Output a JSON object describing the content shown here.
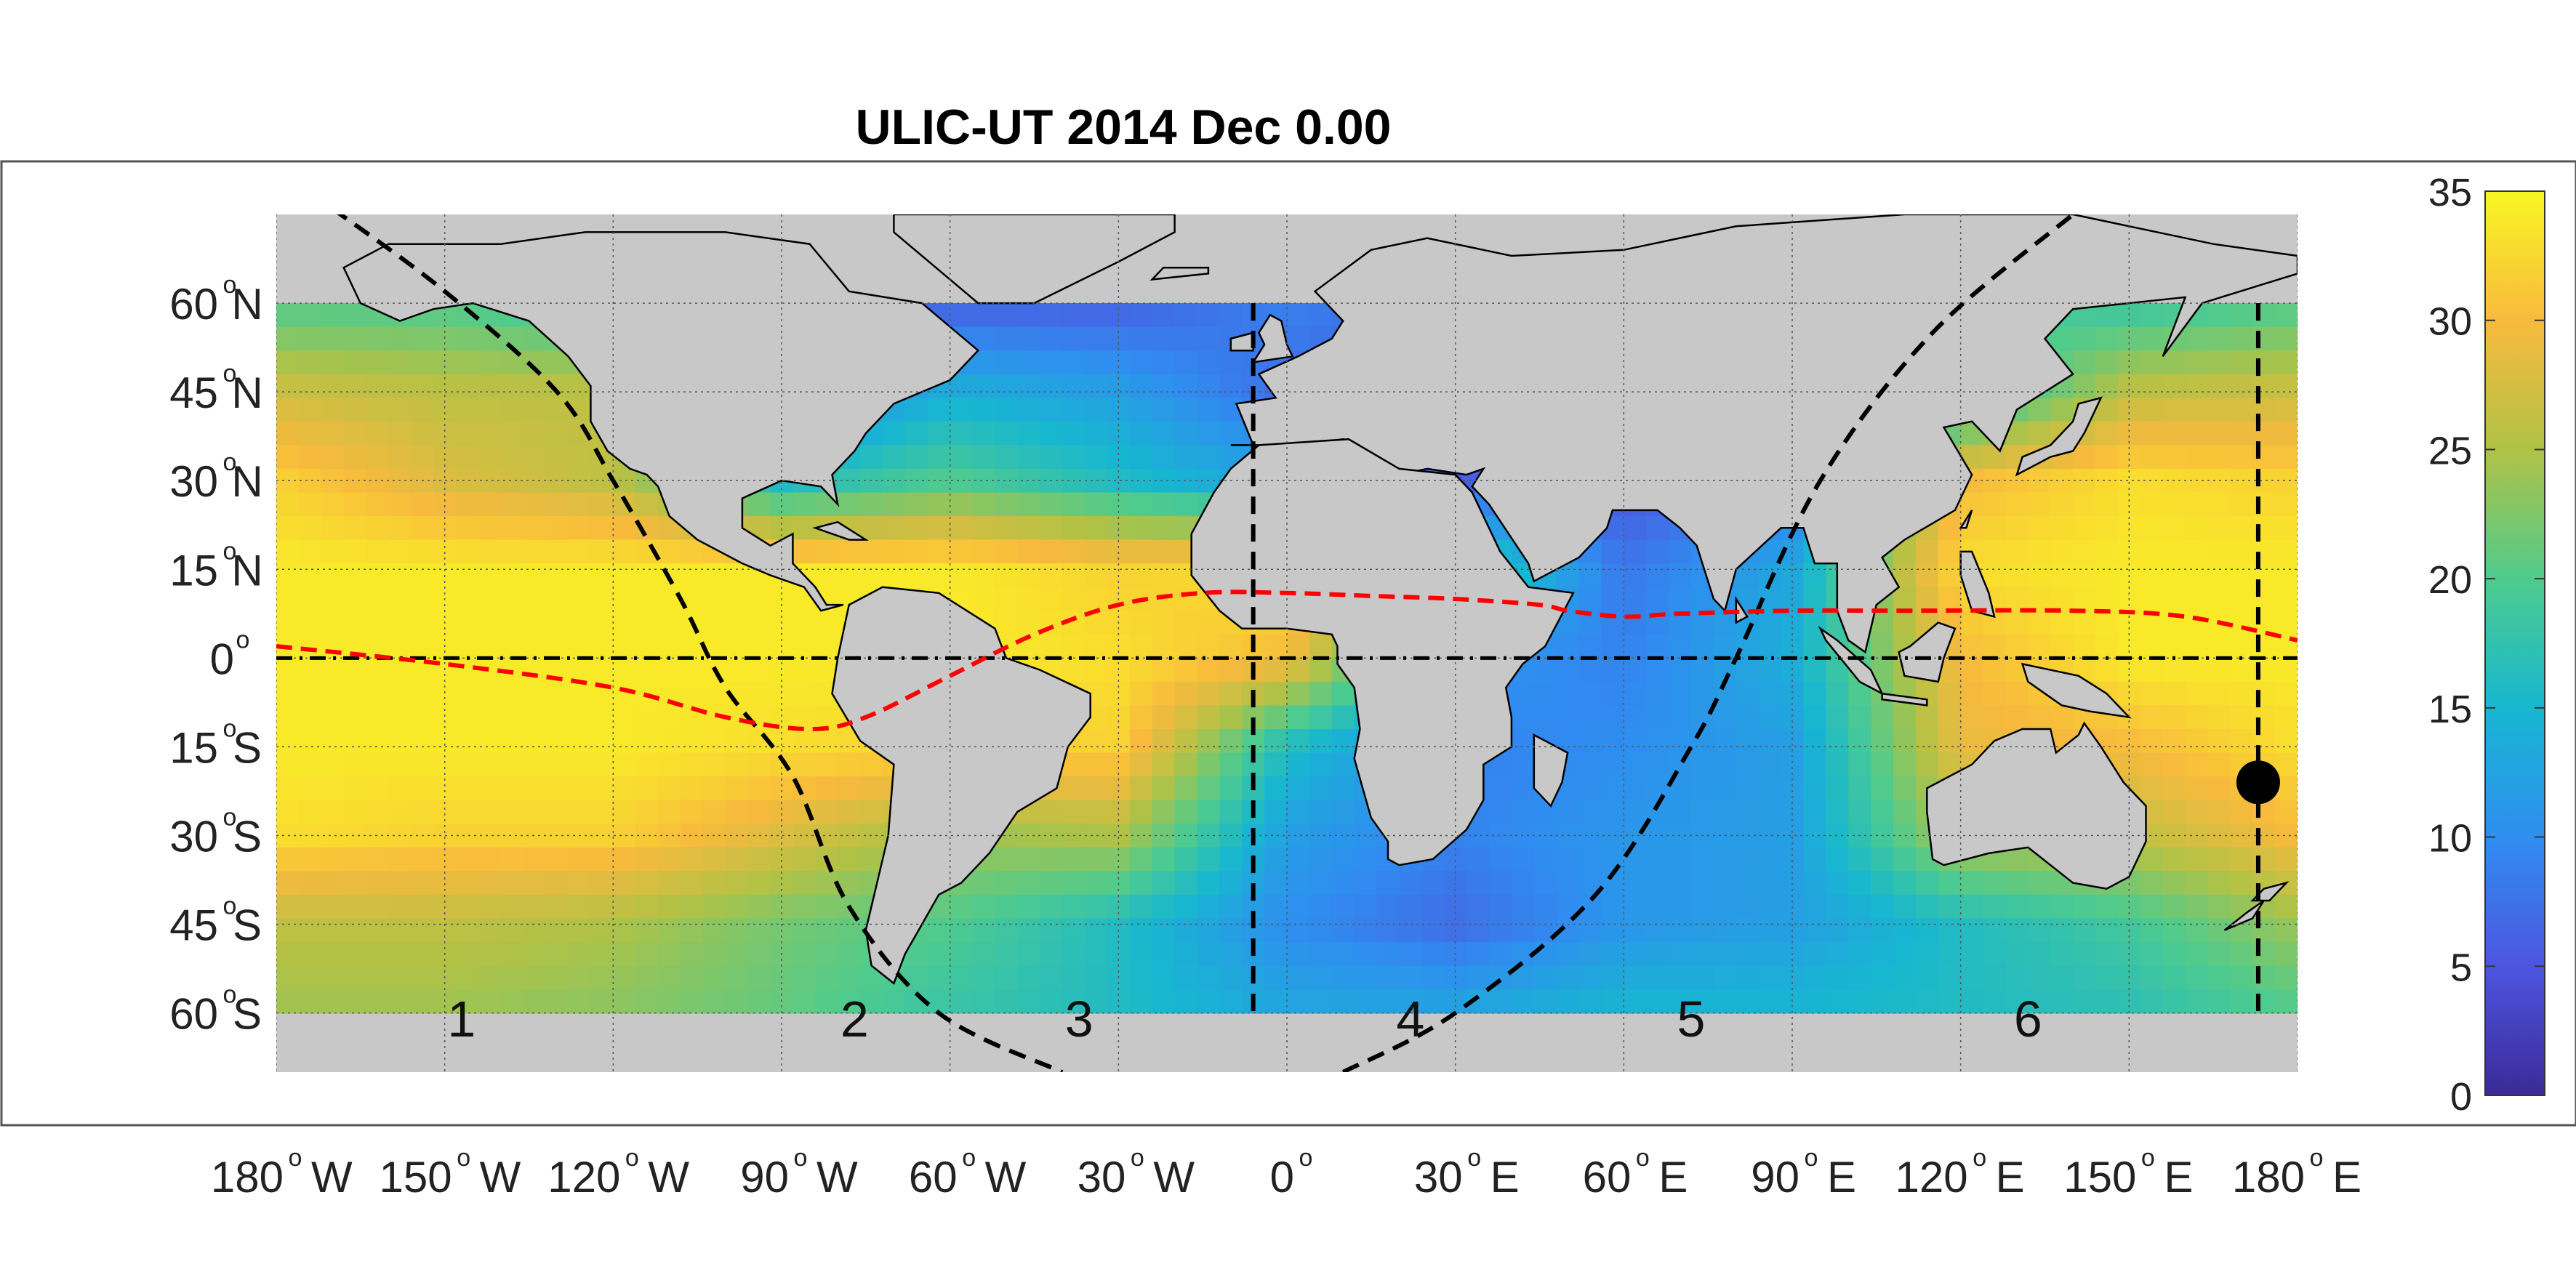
{
  "title": "ULIC-UT 2014 Dec  0.00",
  "map": {
    "projection": "equirectangular",
    "lon_range": [
      -180,
      180
    ],
    "lat_range": [
      -70,
      75
    ],
    "data_lat_range": [
      -60,
      60
    ],
    "land_color": "#c8c8c8",
    "grid": true,
    "lat_ticks": [
      {
        "value": 60,
        "num": "60",
        "hemi": "N"
      },
      {
        "value": 45,
        "num": "45",
        "hemi": "N"
      },
      {
        "value": 30,
        "num": "30",
        "hemi": "N"
      },
      {
        "value": 15,
        "num": "15",
        "hemi": "N"
      },
      {
        "value": 0,
        "num": "0",
        "hemi": ""
      },
      {
        "value": -15,
        "num": "15",
        "hemi": "S"
      },
      {
        "value": -30,
        "num": "30",
        "hemi": "S"
      },
      {
        "value": -45,
        "num": "45",
        "hemi": "S"
      },
      {
        "value": -60,
        "num": "60",
        "hemi": "S"
      }
    ],
    "lon_ticks": [
      {
        "value": -180,
        "num": "180",
        "hemi": "W"
      },
      {
        "value": -150,
        "num": "150",
        "hemi": "W"
      },
      {
        "value": -120,
        "num": "120",
        "hemi": "W"
      },
      {
        "value": -90,
        "num": "90",
        "hemi": "W"
      },
      {
        "value": -60,
        "num": "60",
        "hemi": "W"
      },
      {
        "value": -30,
        "num": "30",
        "hemi": "W"
      },
      {
        "value": 0,
        "num": "0",
        "hemi": ""
      },
      {
        "value": 30,
        "num": "30",
        "hemi": "E"
      },
      {
        "value": 60,
        "num": "60",
        "hemi": "E"
      },
      {
        "value": 90,
        "num": "90",
        "hemi": "E"
      },
      {
        "value": 120,
        "num": "120",
        "hemi": "E"
      },
      {
        "value": 150,
        "num": "150",
        "hemi": "E"
      },
      {
        "value": 180,
        "num": "180",
        "hemi": "E"
      }
    ],
    "zone_labels": [
      {
        "text": "1",
        "lon": -147,
        "lat": -61
      },
      {
        "text": "2",
        "lon": -77,
        "lat": -61
      },
      {
        "text": "3",
        "lon": -37,
        "lat": -61
      },
      {
        "text": "4",
        "lon": 22,
        "lat": -61
      },
      {
        "text": "5",
        "lon": 72,
        "lat": -61
      },
      {
        "text": "6",
        "lon": 132,
        "lat": -61
      }
    ],
    "marker": {
      "lon": 173,
      "lat": -21,
      "color": "#000000"
    }
  },
  "lines": {
    "terminator_line": {
      "color": "#ff0000",
      "points": [
        [
          -180,
          2
        ],
        [
          -150,
          -1
        ],
        [
          -120,
          -5
        ],
        [
          -100,
          -10
        ],
        [
          -85,
          -12
        ],
        [
          -75,
          -10
        ],
        [
          -60,
          -3
        ],
        [
          -45,
          4
        ],
        [
          -30,
          9
        ],
        [
          -15,
          11
        ],
        [
          0,
          11
        ],
        [
          15,
          10.5
        ],
        [
          30,
          10
        ],
        [
          45,
          9
        ],
        [
          50,
          8
        ],
        [
          60,
          7
        ],
        [
          70,
          7.5
        ],
        [
          90,
          8
        ],
        [
          110,
          8
        ],
        [
          140,
          8
        ],
        [
          160,
          7
        ],
        [
          180,
          3
        ]
      ]
    },
    "equator_line": {
      "lat": 0,
      "color": "#000000"
    },
    "meridian_lines": [
      {
        "lon": -6
      },
      {
        "lon": 173
      }
    ],
    "curve_west": {
      "points": [
        [
          -170,
          76
        ],
        [
          -150,
          62
        ],
        [
          -130,
          45
        ],
        [
          -120,
          30
        ],
        [
          -108,
          10
        ],
        [
          -100,
          -5
        ],
        [
          -88,
          -20
        ],
        [
          -78,
          -42
        ],
        [
          -62,
          -60
        ],
        [
          -40,
          -70
        ]
      ]
    },
    "curve_east": {
      "points": [
        [
          10,
          -70
        ],
        [
          30,
          -60
        ],
        [
          55,
          -40
        ],
        [
          72,
          -15
        ],
        [
          80,
          0
        ],
        [
          95,
          30
        ],
        [
          115,
          55
        ],
        [
          140,
          75
        ]
      ]
    }
  },
  "colorbar": {
    "min": 0,
    "max": 35,
    "ticks": [
      "0",
      "5",
      "10",
      "15",
      "20",
      "25",
      "30",
      "35"
    ],
    "colors": [
      "#3b2a98",
      "#4d55e0",
      "#2f8ef0",
      "#17b7d0",
      "#4fcb8d",
      "#b0c246",
      "#f8ba3d",
      "#f9f624"
    ]
  },
  "field": {
    "lat_nodes": [
      60,
      45,
      30,
      15,
      0,
      -15,
      -30,
      -45,
      -60
    ],
    "lon_nodes": [
      -180,
      -150,
      -120,
      -90,
      -60,
      -30,
      0,
      30,
      60,
      90,
      120,
      150,
      180
    ],
    "values": [
      [
        20,
        20,
        18,
        4,
        6,
        6,
        9,
        6,
        6,
        6,
        20,
        18,
        20
      ],
      [
        27,
        26,
        26,
        8,
        14,
        12,
        7,
        6,
        6,
        6,
        16,
        26,
        27
      ],
      [
        32,
        28,
        26,
        16,
        20,
        16,
        12,
        6,
        5,
        8,
        30,
        33,
        32
      ],
      [
        34,
        34,
        34,
        34,
        34,
        32,
        33,
        20,
        8,
        13,
        33,
        34,
        34
      ],
      [
        34,
        34,
        34,
        34,
        34,
        33,
        30,
        11,
        9,
        14,
        30,
        34,
        34
      ],
      [
        34,
        34,
        34,
        33,
        32,
        32,
        16,
        9,
        10,
        12,
        29,
        30,
        33
      ],
      [
        33,
        32,
        32,
        28,
        24,
        25,
        12,
        9,
        11,
        12,
        25,
        26,
        30
      ],
      [
        26,
        26,
        25,
        22,
        20,
        16,
        10,
        7,
        11,
        12,
        16,
        19,
        24
      ],
      [
        24,
        24,
        23,
        21,
        18,
        16,
        13,
        13,
        15,
        15,
        16,
        17,
        20
      ]
    ]
  }
}
